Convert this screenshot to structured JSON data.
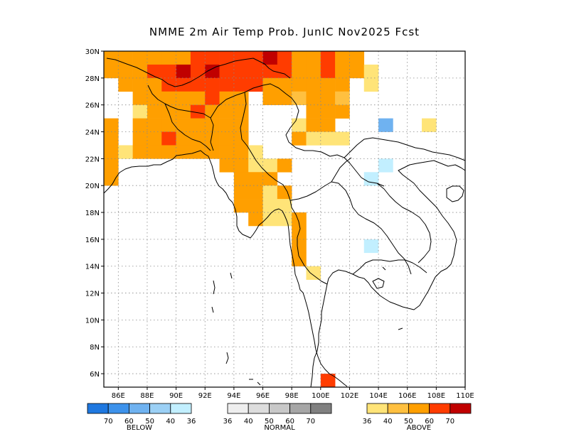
{
  "title": "NMME 2m Air Temp Prob. JunIC  Nov2025 Fcst",
  "map": {
    "lon_range": [
      85,
      110
    ],
    "lat_range": [
      5,
      30
    ],
    "lat_ticks": [
      {
        "value": 30,
        "label": "30N"
      },
      {
        "value": 28,
        "label": "28N"
      },
      {
        "value": 26,
        "label": "26N"
      },
      {
        "value": 24,
        "label": "24N"
      },
      {
        "value": 22,
        "label": "22N"
      },
      {
        "value": 20,
        "label": "20N"
      },
      {
        "value": 18,
        "label": "18N"
      },
      {
        "value": 16,
        "label": "16N"
      },
      {
        "value": 14,
        "label": "14N"
      },
      {
        "value": 12,
        "label": "12N"
      },
      {
        "value": 10,
        "label": "10N"
      },
      {
        "value": 8,
        "label": "8N"
      },
      {
        "value": 6,
        "label": "6N"
      }
    ],
    "lon_ticks": [
      {
        "value": 86,
        "label": "86E"
      },
      {
        "value": 88,
        "label": "88E"
      },
      {
        "value": 90,
        "label": "90E"
      },
      {
        "value": 92,
        "label": "92E"
      },
      {
        "value": 94,
        "label": "94E"
      },
      {
        "value": 96,
        "label": "96E"
      },
      {
        "value": 98,
        "label": "98E"
      },
      {
        "value": 100,
        "label": "100E"
      },
      {
        "value": 102,
        "label": "102E"
      },
      {
        "value": 104,
        "label": "104E"
      },
      {
        "value": 106,
        "label": "106E"
      },
      {
        "value": 108,
        "label": "108E"
      },
      {
        "value": 110,
        "label": "110E"
      }
    ],
    "grid": true,
    "cells": [
      {
        "lon": 85,
        "lat": 29,
        "cat": "A50"
      },
      {
        "lon": 86,
        "lat": 29,
        "cat": "A50"
      },
      {
        "lon": 87,
        "lat": 29,
        "cat": "A50"
      },
      {
        "lon": 88,
        "lat": 29,
        "cat": "A50"
      },
      {
        "lon": 89,
        "lat": 29,
        "cat": "A50"
      },
      {
        "lon": 90,
        "lat": 29,
        "cat": "A50"
      },
      {
        "lon": 91,
        "lat": 29,
        "cat": "A60"
      },
      {
        "lon": 92,
        "lat": 29,
        "cat": "A60"
      },
      {
        "lon": 93,
        "lat": 29,
        "cat": "A60"
      },
      {
        "lon": 94,
        "lat": 29,
        "cat": "A60"
      },
      {
        "lon": 95,
        "lat": 29,
        "cat": "A60"
      },
      {
        "lon": 96,
        "lat": 29,
        "cat": "A70"
      },
      {
        "lon": 97,
        "lat": 29,
        "cat": "A60"
      },
      {
        "lon": 98,
        "lat": 29,
        "cat": "A50"
      },
      {
        "lon": 99,
        "lat": 29,
        "cat": "A50"
      },
      {
        "lon": 100,
        "lat": 29,
        "cat": "A60"
      },
      {
        "lon": 101,
        "lat": 29,
        "cat": "A50"
      },
      {
        "lon": 102,
        "lat": 29,
        "cat": "A50"
      },
      {
        "lon": 85,
        "lat": 28,
        "cat": "A50"
      },
      {
        "lon": 86,
        "lat": 28,
        "cat": "A50"
      },
      {
        "lon": 87,
        "lat": 28,
        "cat": "A50"
      },
      {
        "lon": 88,
        "lat": 28,
        "cat": "A60"
      },
      {
        "lon": 89,
        "lat": 28,
        "cat": "A60"
      },
      {
        "lon": 90,
        "lat": 28,
        "cat": "A70"
      },
      {
        "lon": 91,
        "lat": 28,
        "cat": "A60"
      },
      {
        "lon": 92,
        "lat": 28,
        "cat": "A70"
      },
      {
        "lon": 93,
        "lat": 28,
        "cat": "A60"
      },
      {
        "lon": 94,
        "lat": 28,
        "cat": "A60"
      },
      {
        "lon": 95,
        "lat": 28,
        "cat": "A60"
      },
      {
        "lon": 96,
        "lat": 28,
        "cat": "A60"
      },
      {
        "lon": 97,
        "lat": 28,
        "cat": "A60"
      },
      {
        "lon": 98,
        "lat": 28,
        "cat": "A50"
      },
      {
        "lon": 99,
        "lat": 28,
        "cat": "A50"
      },
      {
        "lon": 100,
        "lat": 28,
        "cat": "A60"
      },
      {
        "lon": 101,
        "lat": 28,
        "cat": "A50"
      },
      {
        "lon": 102,
        "lat": 28,
        "cat": "A50"
      },
      {
        "lon": 103,
        "lat": 28,
        "cat": "A36"
      },
      {
        "lon": 86,
        "lat": 27,
        "cat": "A50"
      },
      {
        "lon": 87,
        "lat": 27,
        "cat": "A50"
      },
      {
        "lon": 88,
        "lat": 27,
        "cat": "A50"
      },
      {
        "lon": 89,
        "lat": 27,
        "cat": "A60"
      },
      {
        "lon": 90,
        "lat": 27,
        "cat": "A60"
      },
      {
        "lon": 91,
        "lat": 27,
        "cat": "A60"
      },
      {
        "lon": 92,
        "lat": 27,
        "cat": "A60"
      },
      {
        "lon": 93,
        "lat": 27,
        "cat": "A60"
      },
      {
        "lon": 94,
        "lat": 27,
        "cat": "A60"
      },
      {
        "lon": 95,
        "lat": 27,
        "cat": "A60"
      },
      {
        "lon": 96,
        "lat": 27,
        "cat": "A50"
      },
      {
        "lon": 97,
        "lat": 27,
        "cat": "A50"
      },
      {
        "lon": 98,
        "lat": 27,
        "cat": "A50"
      },
      {
        "lon": 99,
        "lat": 27,
        "cat": "A50"
      },
      {
        "lon": 100,
        "lat": 27,
        "cat": "A50"
      },
      {
        "lon": 101,
        "lat": 27,
        "cat": "A50"
      },
      {
        "lon": 103,
        "lat": 27,
        "cat": "A36"
      },
      {
        "lon": 87,
        "lat": 26,
        "cat": "A50"
      },
      {
        "lon": 88,
        "lat": 26,
        "cat": "A50"
      },
      {
        "lon": 89,
        "lat": 26,
        "cat": "A50"
      },
      {
        "lon": 90,
        "lat": 26,
        "cat": "A50"
      },
      {
        "lon": 91,
        "lat": 26,
        "cat": "A50"
      },
      {
        "lon": 92,
        "lat": 26,
        "cat": "A60"
      },
      {
        "lon": 93,
        "lat": 26,
        "cat": "A50"
      },
      {
        "lon": 94,
        "lat": 26,
        "cat": "A50"
      },
      {
        "lon": 96,
        "lat": 26,
        "cat": "A50"
      },
      {
        "lon": 97,
        "lat": 26,
        "cat": "A50"
      },
      {
        "lon": 98,
        "lat": 26,
        "cat": "A40"
      },
      {
        "lon": 99,
        "lat": 26,
        "cat": "A50"
      },
      {
        "lon": 100,
        "lat": 26,
        "cat": "A50"
      },
      {
        "lon": 101,
        "lat": 26,
        "cat": "A40"
      },
      {
        "lon": 87,
        "lat": 25,
        "cat": "A36"
      },
      {
        "lon": 88,
        "lat": 25,
        "cat": "A50"
      },
      {
        "lon": 89,
        "lat": 25,
        "cat": "A50"
      },
      {
        "lon": 90,
        "lat": 25,
        "cat": "A50"
      },
      {
        "lon": 91,
        "lat": 25,
        "cat": "A60"
      },
      {
        "lon": 92,
        "lat": 25,
        "cat": "A50"
      },
      {
        "lon": 93,
        "lat": 25,
        "cat": "A50"
      },
      {
        "lon": 94,
        "lat": 25,
        "cat": "A50"
      },
      {
        "lon": 99,
        "lat": 25,
        "cat": "A50"
      },
      {
        "lon": 100,
        "lat": 25,
        "cat": "A50"
      },
      {
        "lon": 101,
        "lat": 25,
        "cat": "A50"
      },
      {
        "lon": 85,
        "lat": 24,
        "cat": "A50"
      },
      {
        "lon": 87,
        "lat": 24,
        "cat": "A50"
      },
      {
        "lon": 88,
        "lat": 24,
        "cat": "A50"
      },
      {
        "lon": 89,
        "lat": 24,
        "cat": "A50"
      },
      {
        "lon": 90,
        "lat": 24,
        "cat": "A50"
      },
      {
        "lon": 91,
        "lat": 24,
        "cat": "A50"
      },
      {
        "lon": 92,
        "lat": 24,
        "cat": "A50"
      },
      {
        "lon": 93,
        "lat": 24,
        "cat": "A50"
      },
      {
        "lon": 94,
        "lat": 24,
        "cat": "A50"
      },
      {
        "lon": 98,
        "lat": 24,
        "cat": "A36"
      },
      {
        "lon": 99,
        "lat": 24,
        "cat": "A50"
      },
      {
        "lon": 100,
        "lat": 24,
        "cat": "A50"
      },
      {
        "lon": 104,
        "lat": 24,
        "cat": "B50"
      },
      {
        "lon": 107,
        "lat": 24,
        "cat": "A36"
      },
      {
        "lon": 85,
        "lat": 23,
        "cat": "A50"
      },
      {
        "lon": 87,
        "lat": 23,
        "cat": "A50"
      },
      {
        "lon": 88,
        "lat": 23,
        "cat": "A50"
      },
      {
        "lon": 89,
        "lat": 23,
        "cat": "A60"
      },
      {
        "lon": 90,
        "lat": 23,
        "cat": "A50"
      },
      {
        "lon": 91,
        "lat": 23,
        "cat": "A50"
      },
      {
        "lon": 92,
        "lat": 23,
        "cat": "A50"
      },
      {
        "lon": 93,
        "lat": 23,
        "cat": "A50"
      },
      {
        "lon": 94,
        "lat": 23,
        "cat": "A50"
      },
      {
        "lon": 98,
        "lat": 23,
        "cat": "A50"
      },
      {
        "lon": 99,
        "lat": 23,
        "cat": "A36"
      },
      {
        "lon": 100,
        "lat": 23,
        "cat": "A36"
      },
      {
        "lon": 101,
        "lat": 23,
        "cat": "A36"
      },
      {
        "lon": 85,
        "lat": 22,
        "cat": "A50"
      },
      {
        "lon": 86,
        "lat": 22,
        "cat": "A36"
      },
      {
        "lon": 87,
        "lat": 22,
        "cat": "A50"
      },
      {
        "lon": 88,
        "lat": 22,
        "cat": "A50"
      },
      {
        "lon": 89,
        "lat": 22,
        "cat": "A50"
      },
      {
        "lon": 90,
        "lat": 22,
        "cat": "A50"
      },
      {
        "lon": 91,
        "lat": 22,
        "cat": "A50"
      },
      {
        "lon": 92,
        "lat": 22,
        "cat": "A50"
      },
      {
        "lon": 93,
        "lat": 22,
        "cat": "A50"
      },
      {
        "lon": 94,
        "lat": 22,
        "cat": "A50"
      },
      {
        "lon": 95,
        "lat": 22,
        "cat": "A36"
      },
      {
        "lon": 85,
        "lat": 21,
        "cat": "A50"
      },
      {
        "lon": 93,
        "lat": 21,
        "cat": "A50"
      },
      {
        "lon": 94,
        "lat": 21,
        "cat": "A50"
      },
      {
        "lon": 95,
        "lat": 21,
        "cat": "A36"
      },
      {
        "lon": 96,
        "lat": 21,
        "cat": "A36"
      },
      {
        "lon": 97,
        "lat": 21,
        "cat": "A50"
      },
      {
        "lon": 104,
        "lat": 21,
        "cat": "B36"
      },
      {
        "lon": 85,
        "lat": 20,
        "cat": "A50"
      },
      {
        "lon": 94,
        "lat": 20,
        "cat": "A50"
      },
      {
        "lon": 95,
        "lat": 20,
        "cat": "A50"
      },
      {
        "lon": 96,
        "lat": 20,
        "cat": "A50"
      },
      {
        "lon": 103,
        "lat": 20,
        "cat": "B36"
      },
      {
        "lon": 94,
        "lat": 19,
        "cat": "A50"
      },
      {
        "lon": 95,
        "lat": 19,
        "cat": "A50"
      },
      {
        "lon": 96,
        "lat": 19,
        "cat": "A36"
      },
      {
        "lon": 97,
        "lat": 19,
        "cat": "A50"
      },
      {
        "lon": 94,
        "lat": 18,
        "cat": "A50"
      },
      {
        "lon": 95,
        "lat": 18,
        "cat": "A50"
      },
      {
        "lon": 96,
        "lat": 18,
        "cat": "A36"
      },
      {
        "lon": 97,
        "lat": 18,
        "cat": "A36"
      },
      {
        "lon": 95,
        "lat": 17,
        "cat": "A50"
      },
      {
        "lon": 96,
        "lat": 17,
        "cat": "A36"
      },
      {
        "lon": 97,
        "lat": 17,
        "cat": "A36"
      },
      {
        "lon": 98,
        "lat": 17,
        "cat": "A50"
      },
      {
        "lon": 98,
        "lat": 16,
        "cat": "A50"
      },
      {
        "lon": 98,
        "lat": 15,
        "cat": "A50"
      },
      {
        "lon": 103,
        "lat": 15,
        "cat": "B36"
      },
      {
        "lon": 98,
        "lat": 14,
        "cat": "A50"
      },
      {
        "lon": 99,
        "lat": 13,
        "cat": "A36"
      },
      {
        "lon": 100,
        "lat": 5,
        "cat": "A60"
      }
    ]
  },
  "legend": {
    "below": {
      "label": "BELOW",
      "numbers": [
        "70",
        "60",
        "50",
        "40",
        "36"
      ],
      "colors": [
        "#1f78e0",
        "#3d92eb",
        "#6fb2f0",
        "#9bd0f5",
        "#c2efff"
      ]
    },
    "normal": {
      "label": "NORMAL",
      "numbers": [
        "36",
        "40",
        "50",
        "60",
        "70"
      ],
      "colors": [
        "#eeeeee",
        "#dddddd",
        "#c8c8c8",
        "#a6a6a6",
        "#808080"
      ]
    },
    "above": {
      "label": "ABOVE",
      "numbers": [
        "36",
        "40",
        "50",
        "60",
        "70"
      ],
      "colors": [
        "#ffe478",
        "#ffc040",
        "#ff9f00",
        "#ff3c00",
        "#c00000"
      ]
    }
  }
}
